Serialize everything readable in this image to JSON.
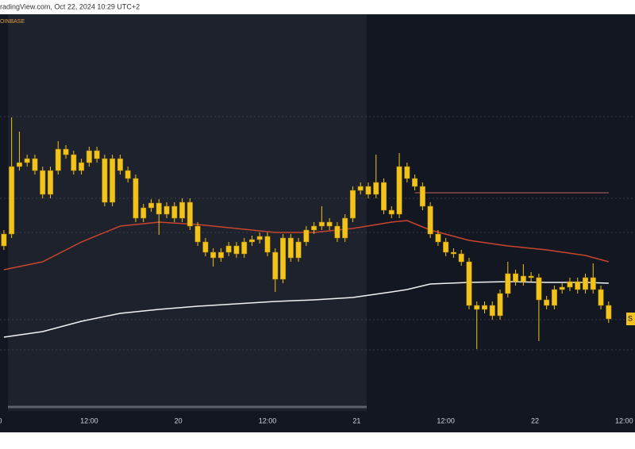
{
  "header": "radingView.com, Oct 22, 2024 10:29 UTC+2",
  "chart_data": {
    "type": "candlestick",
    "source": "OINBASE",
    "color": "#f2c31b",
    "xlim": [
      -0.5,
      81.4
    ],
    "ylim": [
      48,
      548
    ],
    "xticks": [
      {
        "value": -0.5,
        "label": "0"
      },
      {
        "value": 11,
        "label": "12:00"
      },
      {
        "value": 22.5,
        "label": "20"
      },
      {
        "value": 34,
        "label": "12:00"
      },
      {
        "value": 45.5,
        "label": "21"
      },
      {
        "value": 57,
        "label": "12:00"
      },
      {
        "value": 68.5,
        "label": "22"
      },
      {
        "value": 80,
        "label": "12:00"
      }
    ],
    "open": [
      256,
      271,
      356,
      361,
      366,
      351,
      321,
      351,
      378,
      371,
      351,
      361,
      376,
      366,
      311,
      366,
      351,
      341,
      291,
      304,
      310,
      296,
      306,
      291,
      311,
      281,
      261,
      248,
      241,
      248,
      256,
      246,
      261,
      264,
      268,
      248,
      214,
      266,
      241,
      261,
      276,
      281,
      286,
      281,
      266,
      291,
      326,
      331,
      321,
      336,
      301,
      296,
      356,
      341,
      331,
      306,
      271,
      261,
      248,
      246,
      236,
      181,
      176,
      181,
      168,
      196,
      221,
      211,
      218,
      216,
      188,
      181,
      201,
      204,
      211,
      201,
      216,
      201,
      181
    ],
    "high": [
      276,
      418,
      400,
      371,
      371,
      356,
      356,
      388,
      383,
      376,
      366,
      381,
      381,
      371,
      371,
      371,
      356,
      346,
      309,
      315,
      315,
      311,
      311,
      316,
      316,
      286,
      266,
      253,
      253,
      261,
      261,
      266,
      269,
      273,
      273,
      253,
      271,
      271,
      266,
      281,
      286,
      306,
      291,
      286,
      296,
      331,
      336,
      336,
      371,
      341,
      306,
      373,
      361,
      346,
      336,
      311,
      276,
      266,
      253,
      251,
      241,
      186,
      186,
      186,
      201,
      236,
      226,
      233,
      223,
      221,
      193,
      206,
      209,
      216,
      216,
      221,
      234,
      206,
      186
    ],
    "low": [
      251,
      266,
      351,
      356,
      346,
      316,
      316,
      346,
      366,
      346,
      346,
      356,
      361,
      306,
      306,
      346,
      336,
      286,
      286,
      299,
      270,
      291,
      286,
      286,
      276,
      256,
      243,
      230,
      236,
      243,
      241,
      241,
      256,
      259,
      243,
      198,
      209,
      236,
      236,
      256,
      271,
      276,
      276,
      261,
      261,
      286,
      321,
      316,
      316,
      296,
      291,
      291,
      336,
      326,
      301,
      266,
      256,
      243,
      241,
      231,
      176,
      126,
      171,
      163,
      163,
      191,
      206,
      206,
      211,
      136,
      176,
      176,
      196,
      199,
      196,
      196,
      196,
      176,
      159
    ],
    "close": [
      271,
      356,
      361,
      366,
      351,
      321,
      351,
      378,
      371,
      351,
      361,
      376,
      366,
      311,
      366,
      351,
      341,
      291,
      304,
      310,
      296,
      306,
      291,
      311,
      281,
      261,
      248,
      241,
      248,
      256,
      246,
      261,
      264,
      268,
      248,
      214,
      266,
      241,
      261,
      276,
      281,
      286,
      281,
      266,
      291,
      326,
      331,
      321,
      336,
      301,
      296,
      356,
      341,
      331,
      306,
      271,
      261,
      248,
      246,
      236,
      181,
      176,
      181,
      168,
      196,
      221,
      211,
      218,
      216,
      188,
      181,
      201,
      204,
      211,
      201,
      216,
      201,
      181,
      164
    ],
    "lines": [
      {
        "color": "#c8452d",
        "x": [
          0,
          5,
          10,
          15,
          20,
          25,
          30,
          35,
          40,
          45,
          50,
          52,
          55,
          60,
          65,
          70,
          75,
          78
        ],
        "values": [
          226,
          236,
          261,
          281,
          286,
          283,
          278,
          273,
          273,
          278,
          286,
          288,
          276,
          263,
          256,
          251,
          244,
          236
        ]
      },
      {
        "color": "#f2f2f2",
        "x": [
          0,
          5,
          10,
          15,
          20,
          25,
          30,
          35,
          40,
          45,
          50,
          52,
          55,
          60,
          65,
          70,
          75,
          78
        ],
        "values": [
          141,
          148,
          161,
          171,
          176,
          180,
          183,
          186,
          188,
          191,
          198,
          201,
          208,
          210,
          211,
          210,
          210,
          209
        ]
      }
    ],
    "level": {
      "value": 323,
      "color": "#8a4a4a",
      "x": [
        53,
        78
      ]
    },
    "price_label": "S"
  }
}
